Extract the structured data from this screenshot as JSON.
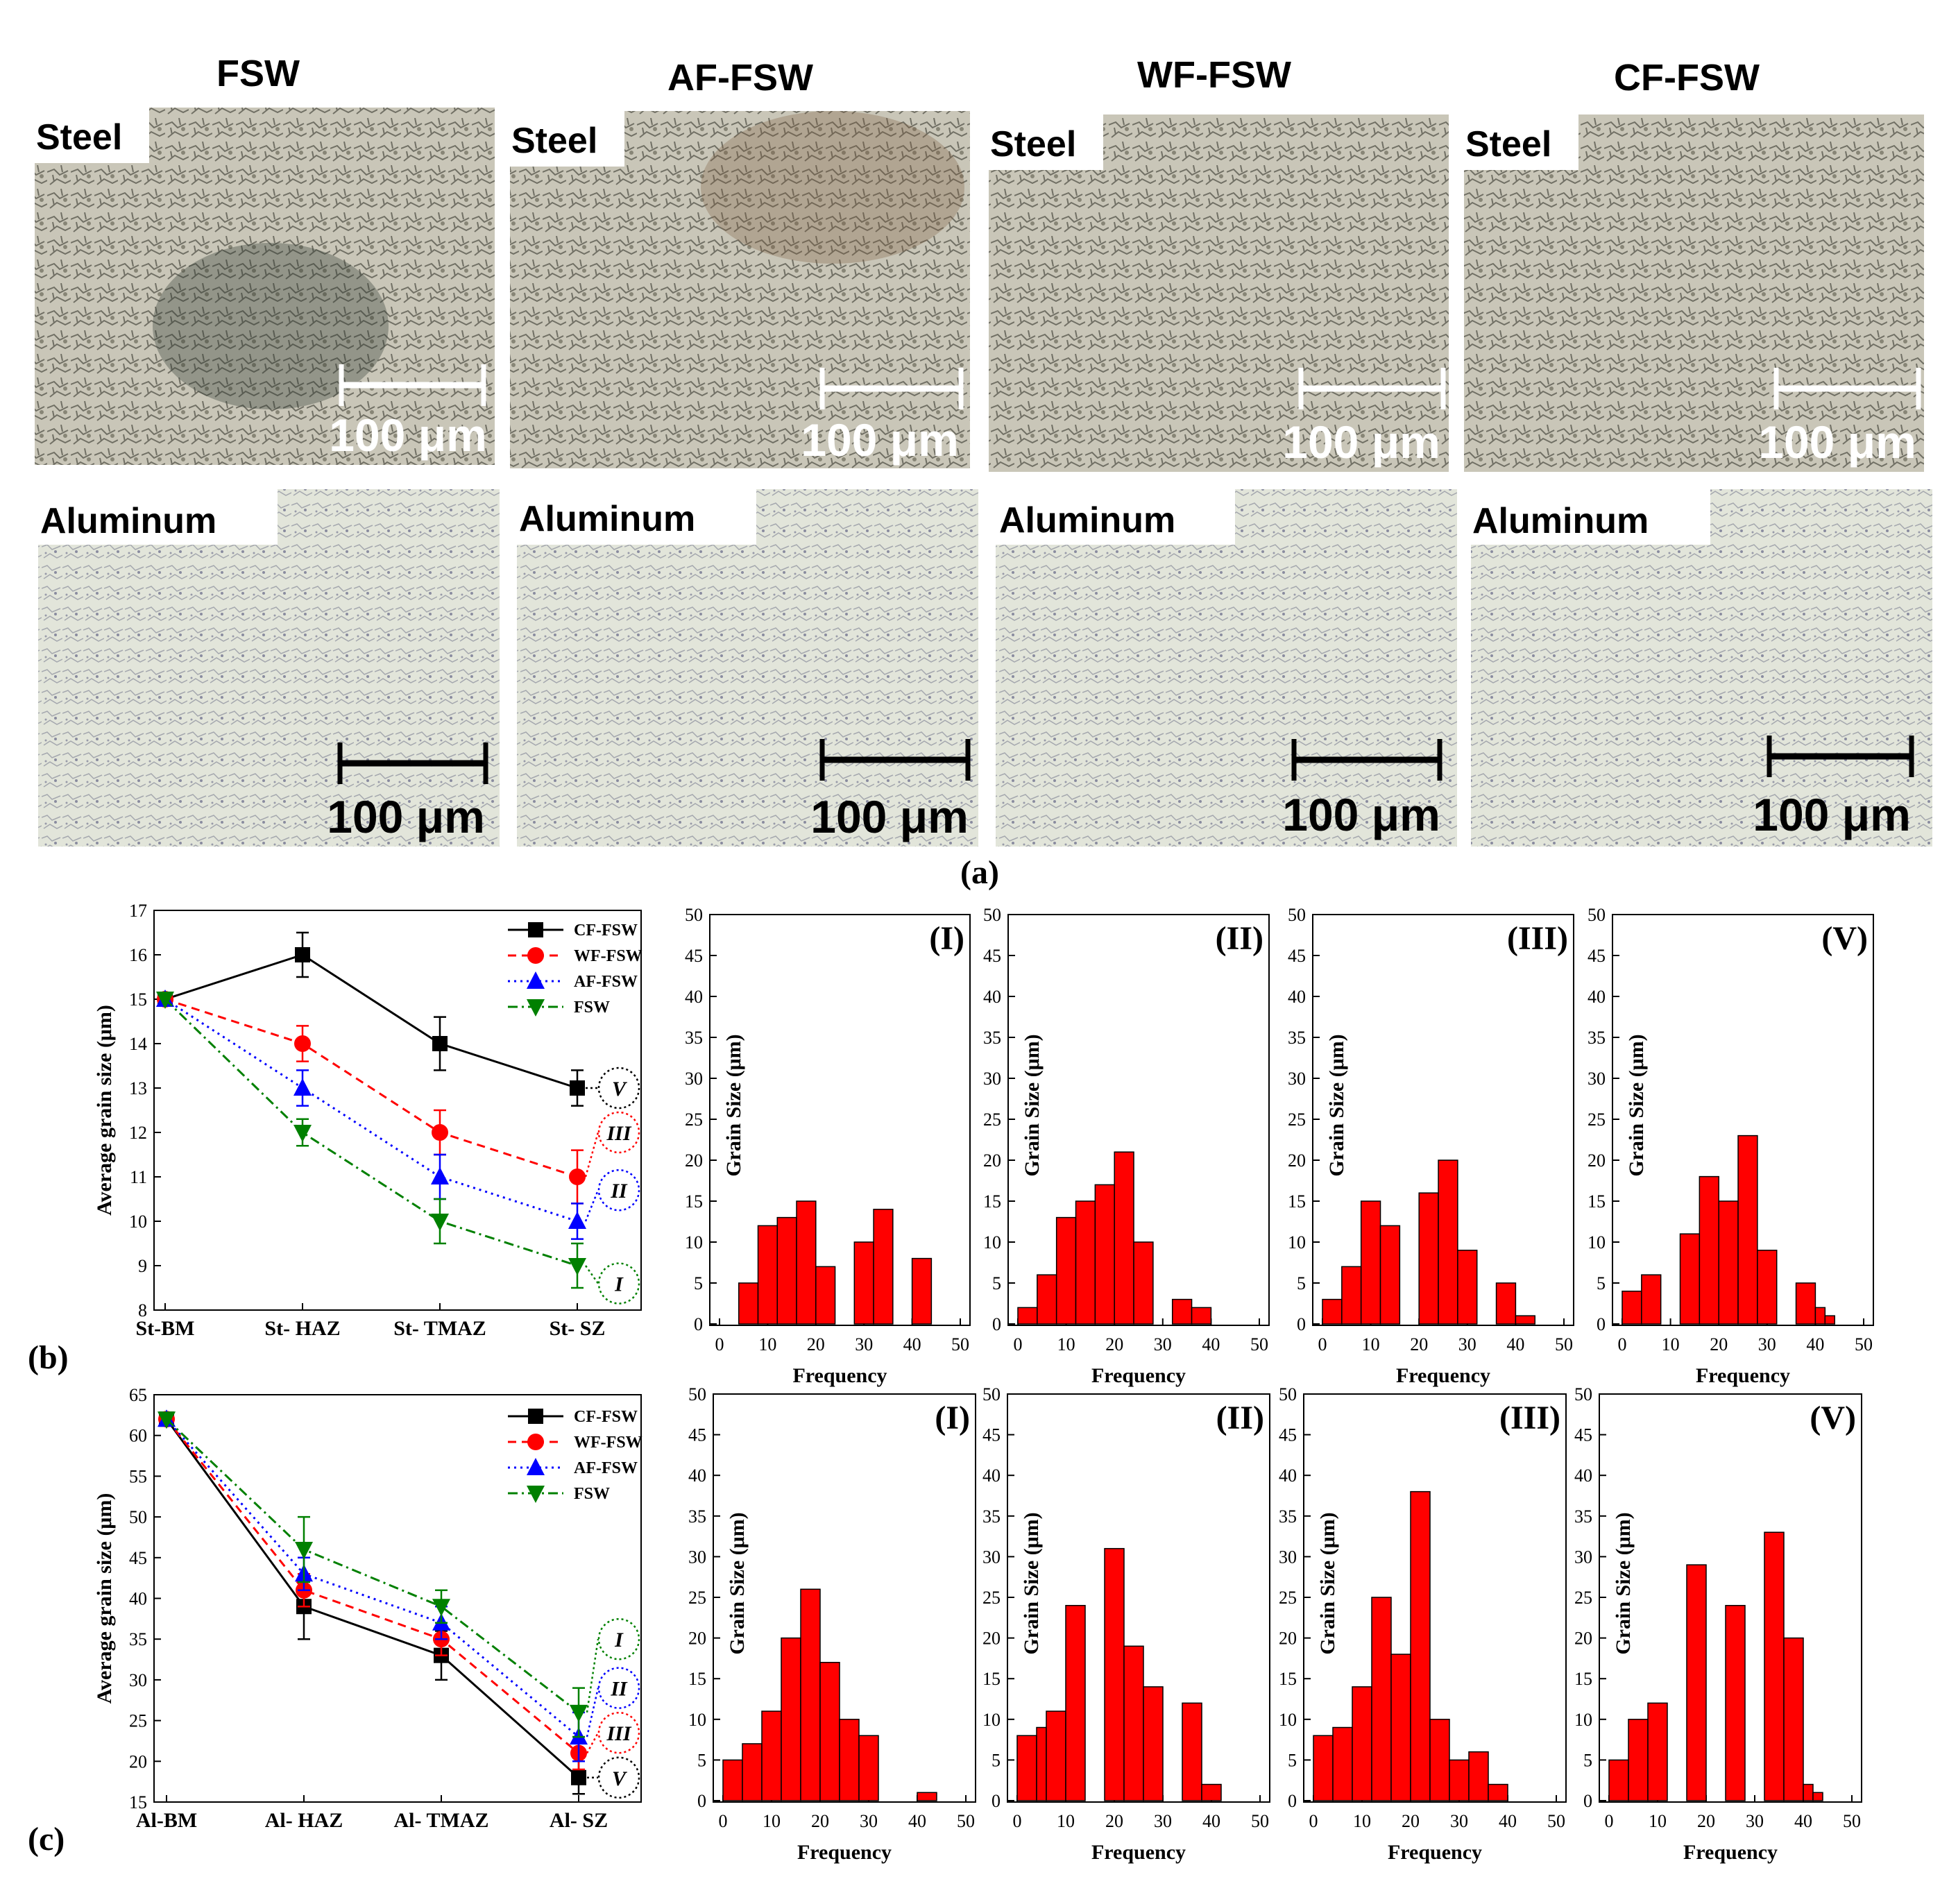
{
  "panel_a": {
    "columns": [
      "FSW",
      "AF-FSW",
      "WF-FSW",
      "CF-FSW"
    ],
    "row_labels": [
      "Steel",
      "Aluminum"
    ],
    "scale_bar": "100 μm",
    "tag": "(a)"
  },
  "panel_b_tag": "(b)",
  "panel_c_tag": "(c)",
  "colors": {
    "CF-FSW": "#000000",
    "WF-FSW": "#ff0000",
    "AF-FSW": "#0000ff",
    "FSW": "#008000",
    "bar": "#ff0000"
  },
  "chart_data": [
    {
      "id": "b-line",
      "type": "line",
      "categories": [
        "St-BM",
        "St- HAZ",
        "St- TMAZ",
        "St- SZ"
      ],
      "ylabel": "Average grain size (μm)",
      "ylim": [
        8,
        17
      ],
      "yticks": [
        8,
        9,
        10,
        11,
        12,
        13,
        14,
        15,
        16,
        17
      ],
      "series": [
        {
          "name": "CF-FSW",
          "values": [
            15,
            16,
            14,
            13
          ],
          "err": [
            0,
            0.5,
            0.6,
            0.4
          ],
          "marker": "square",
          "dash": ""
        },
        {
          "name": "WF-FSW",
          "values": [
            15,
            14,
            12,
            11
          ],
          "err": [
            0,
            0.4,
            0.5,
            0.6
          ],
          "marker": "circle",
          "dash": "12,8"
        },
        {
          "name": "AF-FSW",
          "values": [
            15,
            13,
            11,
            10
          ],
          "err": [
            0,
            0.4,
            0.5,
            0.4
          ],
          "marker": "triangle",
          "dash": "3,6"
        },
        {
          "name": "FSW",
          "values": [
            15,
            12,
            10,
            9
          ],
          "err": [
            0,
            0.3,
            0.5,
            0.5
          ],
          "marker": "triangle-down",
          "dash": "14,6,3,6"
        }
      ],
      "annotations": [
        {
          "text": "V",
          "series": "CF-FSW",
          "y": 13
        },
        {
          "text": "III",
          "series": "WF-FSW",
          "y": 12
        },
        {
          "text": "II",
          "series": "AF-FSW",
          "y": 10.7
        },
        {
          "text": "I",
          "series": "FSW",
          "y": 8.6
        }
      ]
    },
    {
      "id": "b-hist",
      "type": "bar",
      "xlabel": "Frequency",
      "ylabel": "Grain Size (μm)",
      "ylim": [
        0,
        50
      ],
      "xlim": [
        0,
        50
      ],
      "xticks": [
        0,
        10,
        20,
        30,
        40,
        50
      ],
      "yticks": [
        0,
        5,
        10,
        15,
        20,
        25,
        30,
        35,
        40,
        45,
        50
      ],
      "panels": [
        {
          "label": "(I)",
          "bars": [
            [
              4,
              8,
              5
            ],
            [
              8,
              12,
              12
            ],
            [
              12,
              16,
              13
            ],
            [
              16,
              20,
              15
            ],
            [
              20,
              24,
              7
            ],
            [
              24,
              28,
              0
            ],
            [
              28,
              32,
              10
            ],
            [
              32,
              36,
              14
            ],
            [
              36,
              40,
              0
            ],
            [
              40,
              44,
              8
            ]
          ]
        },
        {
          "label": "(II)",
          "bars": [
            [
              0,
              4,
              2
            ],
            [
              4,
              8,
              6
            ],
            [
              8,
              12,
              13
            ],
            [
              12,
              16,
              15
            ],
            [
              16,
              20,
              17
            ],
            [
              20,
              24,
              21
            ],
            [
              24,
              28,
              10
            ],
            [
              28,
              32,
              0
            ],
            [
              32,
              36,
              3
            ],
            [
              36,
              40,
              2
            ]
          ]
        },
        {
          "label": "(III)",
          "bars": [
            [
              0,
              4,
              3
            ],
            [
              4,
              8,
              7
            ],
            [
              8,
              12,
              15
            ],
            [
              12,
              16,
              12
            ],
            [
              16,
              20,
              0
            ],
            [
              20,
              24,
              16
            ],
            [
              24,
              28,
              20
            ],
            [
              28,
              32,
              9
            ],
            [
              32,
              36,
              0
            ],
            [
              36,
              40,
              5
            ],
            [
              40,
              44,
              1
            ]
          ]
        },
        {
          "label": "(V)",
          "bars": [
            [
              0,
              4,
              4
            ],
            [
              4,
              8,
              6
            ],
            [
              8,
              12,
              0
            ],
            [
              12,
              16,
              11
            ],
            [
              16,
              20,
              18
            ],
            [
              20,
              24,
              15
            ],
            [
              24,
              28,
              23
            ],
            [
              28,
              32,
              9
            ],
            [
              32,
              36,
              0
            ],
            [
              36,
              40,
              5
            ],
            [
              40,
              42,
              2
            ],
            [
              42,
              44,
              1
            ]
          ]
        }
      ]
    },
    {
      "id": "c-line",
      "type": "line",
      "categories": [
        "Al-BM",
        "Al- HAZ",
        "Al- TMAZ",
        "Al- SZ"
      ],
      "ylabel": "Average grain size (μm)",
      "ylim": [
        15,
        65
      ],
      "yticks": [
        15,
        20,
        25,
        30,
        35,
        40,
        45,
        50,
        55,
        60,
        65
      ],
      "series": [
        {
          "name": "CF-FSW",
          "values": [
            62,
            39,
            33,
            18
          ],
          "err": [
            0,
            4,
            3,
            2
          ],
          "marker": "square",
          "dash": ""
        },
        {
          "name": "WF-FSW",
          "values": [
            62,
            41,
            35,
            21
          ],
          "err": [
            0,
            2,
            2,
            2
          ],
          "marker": "circle",
          "dash": "12,8"
        },
        {
          "name": "AF-FSW",
          "values": [
            62,
            43,
            37,
            23
          ],
          "err": [
            0,
            2,
            2,
            3
          ],
          "marker": "triangle",
          "dash": "3,6"
        },
        {
          "name": "FSW",
          "values": [
            62,
            46,
            39,
            26
          ],
          "err": [
            0,
            4,
            2,
            3
          ],
          "marker": "triangle-down",
          "dash": "14,6,3,6"
        }
      ],
      "annotations": [
        {
          "text": "I",
          "series": "FSW",
          "y": 35
        },
        {
          "text": "II",
          "series": "AF-FSW",
          "y": 29
        },
        {
          "text": "III",
          "series": "WF-FSW",
          "y": 23.5
        },
        {
          "text": "V",
          "series": "CF-FSW",
          "y": 18
        }
      ]
    },
    {
      "id": "c-hist",
      "type": "bar",
      "xlabel": "Frequency",
      "ylabel": "Grain Size (μm)",
      "ylim": [
        0,
        50
      ],
      "xlim": [
        0,
        50
      ],
      "xticks": [
        0,
        10,
        20,
        30,
        40,
        50
      ],
      "yticks": [
        0,
        5,
        10,
        15,
        20,
        25,
        30,
        35,
        40,
        45,
        50
      ],
      "panels": [
        {
          "label": "(I)",
          "bars": [
            [
              0,
              4,
              5
            ],
            [
              4,
              8,
              7
            ],
            [
              8,
              12,
              11
            ],
            [
              12,
              16,
              20
            ],
            [
              16,
              20,
              26
            ],
            [
              20,
              24,
              17
            ],
            [
              24,
              28,
              10
            ],
            [
              28,
              32,
              8
            ],
            [
              32,
              36,
              0
            ],
            [
              36,
              40,
              0
            ],
            [
              40,
              44,
              1
            ]
          ]
        },
        {
          "label": "(II)",
          "bars": [
            [
              0,
              4,
              8
            ],
            [
              4,
              6,
              9
            ],
            [
              6,
              10,
              11
            ],
            [
              10,
              14,
              24
            ],
            [
              14,
              18,
              0
            ],
            [
              18,
              22,
              31
            ],
            [
              22,
              26,
              19
            ],
            [
              26,
              30,
              14
            ],
            [
              30,
              34,
              0
            ],
            [
              34,
              38,
              12
            ],
            [
              38,
              42,
              2
            ]
          ]
        },
        {
          "label": "(III)",
          "bars": [
            [
              0,
              4,
              8
            ],
            [
              4,
              8,
              9
            ],
            [
              8,
              12,
              14
            ],
            [
              12,
              16,
              25
            ],
            [
              16,
              20,
              18
            ],
            [
              20,
              24,
              38
            ],
            [
              24,
              28,
              10
            ],
            [
              28,
              32,
              5
            ],
            [
              32,
              36,
              6
            ],
            [
              36,
              40,
              2
            ]
          ]
        },
        {
          "label": "(V)",
          "bars": [
            [
              0,
              4,
              5
            ],
            [
              4,
              8,
              10
            ],
            [
              8,
              12,
              12
            ],
            [
              12,
              16,
              0
            ],
            [
              16,
              20,
              29
            ],
            [
              20,
              24,
              0
            ],
            [
              24,
              28,
              24
            ],
            [
              28,
              32,
              0
            ],
            [
              32,
              36,
              33
            ],
            [
              36,
              40,
              20
            ],
            [
              40,
              42,
              2
            ],
            [
              42,
              44,
              1
            ]
          ]
        }
      ]
    }
  ]
}
